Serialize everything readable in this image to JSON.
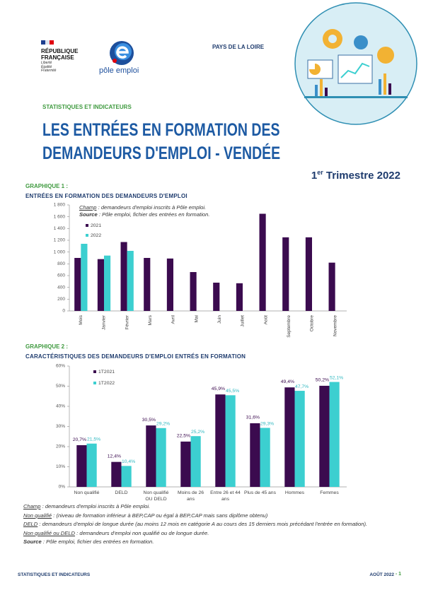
{
  "header": {
    "republique": [
      "RÉPUBLIQUE",
      "FRANÇAISE"
    ],
    "devise": [
      "Liberté",
      "Égalité",
      "Fraternité"
    ],
    "logo": "pôle emploi",
    "region": "PAYS DE LA LOIRE",
    "series": "STATISTIQUES ET INDICATEURS",
    "title": [
      "LES ENTRÉES EN FORMATION DES",
      "DEMANDEURS D'EMPLOI - VENDÉE"
    ],
    "period": {
      "number": "1",
      "suffix": "er",
      "text": " Trimestre 2022"
    }
  },
  "chart_data": [
    {
      "type": "bar",
      "label": "GRAPHIQUE 1 :",
      "title": "ENTRÉES EN FORMATION DES DEMANDEURS D'EMPLOI",
      "notes": [
        {
          "term": "Champ",
          "text": " : demandeurs d'emploi inscrits à Pôle emploi."
        },
        {
          "term": "Source",
          "text": " : Pôle emploi, fichier des entrées en formation."
        }
      ],
      "categories": [
        "Mois",
        "Janvier",
        "Février",
        "Mars",
        "Avril",
        "Mai",
        "Juin",
        "Juillet",
        "Août",
        "Septembre",
        "Octobre",
        "Novembre"
      ],
      "series": [
        {
          "name": "2021",
          "color": "#3b0b4f",
          "values": [
            900,
            880,
            1170,
            900,
            890,
            660,
            480,
            470,
            1650,
            1250,
            1250,
            820
          ]
        },
        {
          "name": "2022",
          "color": "#3ccfd0",
          "values": [
            1140,
            940,
            1020,
            null,
            null,
            null,
            null,
            null,
            null,
            null,
            null,
            null
          ]
        }
      ],
      "ylim": [
        0,
        1800
      ],
      "yticks": [
        0,
        200,
        400,
        600,
        800,
        {
          "value": 1000,
          "label": "1 000"
        },
        {
          "value": 1200,
          "label": "1 200"
        },
        {
          "value": 1400,
          "label": "1 400"
        },
        {
          "value": 1600,
          "label": "1 600"
        },
        {
          "value": 1800,
          "label": "1 800"
        }
      ],
      "grid": false
    },
    {
      "type": "bar",
      "label": "GRAPHIQUE 2 :",
      "title": "CARACTÉRISTIQUES DES DEMANDEURS D'EMPLOI ENTRÉS EN FORMATION",
      "categories": [
        "Non qualifié",
        "DELD",
        "Non qualifié OU DELD",
        "Moins de 26 ans",
        "Entre 26 et 44 ans",
        "Plus de 45 ans",
        "Hommes",
        "Femmes"
      ],
      "series": [
        {
          "name": "1T2021",
          "color": "#3b0b4f",
          "values": [
            20.7,
            12.4,
            30.5,
            22.5,
            45.9,
            31.6,
            49.4,
            50.2
          ],
          "value_labels": [
            "20,7%",
            "12,4%",
            "30,5%",
            "22,5%",
            "45,9%",
            "31,6%",
            "49,4%",
            "50,2%"
          ]
        },
        {
          "name": "1T2022",
          "color": "#3ccfd0",
          "values": [
            21.5,
            10.4,
            29.2,
            25.2,
            45.5,
            29.3,
            47.7,
            52.1
          ],
          "value_labels": [
            "21,5%",
            "10,4%",
            "29,2%",
            "25,2%",
            "45,5%",
            "29,3%",
            "47,7%",
            "52,1%"
          ]
        }
      ],
      "ylim": [
        0,
        60
      ],
      "yticks": [
        {
          "value": 0,
          "label": "0%"
        },
        {
          "value": 10,
          "label": "10%"
        },
        {
          "value": 20,
          "label": "20%"
        },
        {
          "value": 30,
          "label": "30%"
        },
        {
          "value": 40,
          "label": "40%"
        },
        {
          "value": 50,
          "label": "50%"
        },
        {
          "value": 60,
          "label": "60%"
        }
      ],
      "grid": false
    }
  ],
  "notes": [
    {
      "term": "Champ",
      "text": " : demandeurs d'emploi inscrits à Pôle emploi."
    },
    {
      "term": "Non qualifié",
      "text": " :  (niveau de formation inférieur à BEP,CAP ou égal à BEP,CAP mais sans diplôme obtenu)"
    },
    {
      "term": "DELD",
      "text": " : demandeurs d'emploi de longue durée (au moins 12 mois en catégorie A au cours des 15 derniers mois précédant l'entrée en formation)."
    },
    {
      "term": "Non qualifié ou DELD",
      "text": " : demandeurs d'emploi non qualifié ou de longue durée."
    },
    {
      "term": "Source",
      "text": " : Pôle emploi, fichier des entrées en formation."
    }
  ],
  "footer": {
    "left": "STATISTIQUES ET INDICATEURS",
    "date": "AOÛT 2022",
    "page": "- 1"
  }
}
